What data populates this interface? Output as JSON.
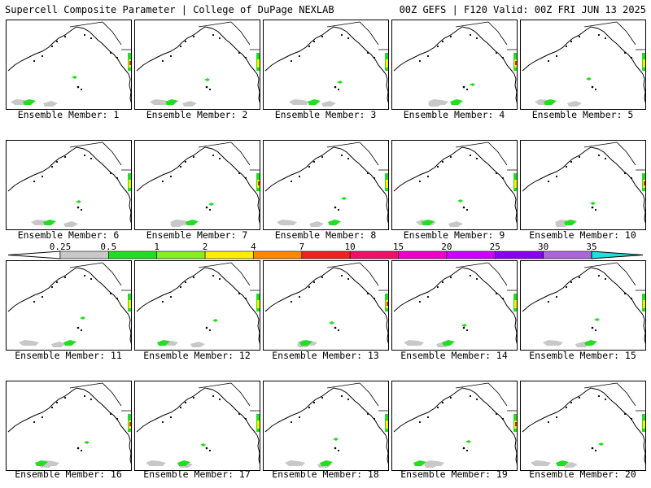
{
  "header": {
    "left": "Supercell Composite Parameter | College of DuPage NEXLAB",
    "right": "00Z GEFS | F120 Valid: 00Z FRI JUN 13 2025"
  },
  "members": [
    {
      "label": "Ensemble Member: 1"
    },
    {
      "label": "Ensemble Member: 2"
    },
    {
      "label": "Ensemble Member: 3"
    },
    {
      "label": "Ensemble Member: 4"
    },
    {
      "label": "Ensemble Member: 5"
    },
    {
      "label": "Ensemble Member: 6"
    },
    {
      "label": "Ensemble Member: 7"
    },
    {
      "label": "Ensemble Member: 8"
    },
    {
      "label": "Ensemble Member: 9"
    },
    {
      "label": "Ensemble Member: 10"
    },
    {
      "label": "Ensemble Member: 11"
    },
    {
      "label": "Ensemble Member: 12"
    },
    {
      "label": "Ensemble Member: 13"
    },
    {
      "label": "Ensemble Member: 14"
    },
    {
      "label": "Ensemble Member: 15"
    },
    {
      "label": "Ensemble Member: 16"
    },
    {
      "label": "Ensemble Member: 17"
    },
    {
      "label": "Ensemble Member: 18"
    },
    {
      "label": "Ensemble Member: 19"
    },
    {
      "label": "Ensemble Member: 20"
    }
  ],
  "colorbar": {
    "ticks": [
      "0.25",
      "0.5",
      "1",
      "2",
      "4",
      "7",
      "10",
      "15",
      "20",
      "25",
      "30",
      "35"
    ],
    "colors": [
      "#c8c8c8",
      "#22dd22",
      "#88ee22",
      "#ffee00",
      "#ff8800",
      "#ee2222",
      "#ee1166",
      "#ee00cc",
      "#cc00ff",
      "#8800ee",
      "#aa66dd",
      "#22dddd"
    ]
  }
}
